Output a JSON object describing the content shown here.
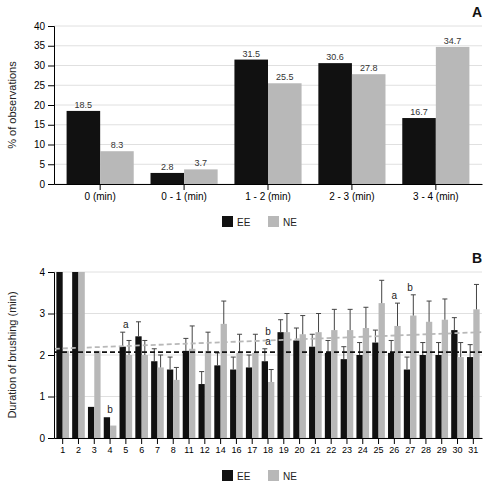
{
  "chart_data": [
    {
      "type": "bar",
      "title": "A",
      "categories": [
        "0 (min)",
        "0 - 1 (min)",
        "1 - 2 (min)",
        "2 - 3 (min)",
        "3 - 4 (min)"
      ],
      "series": [
        {
          "name": "EE",
          "color": "#111111",
          "values": [
            18.5,
            2.8,
            31.5,
            30.6,
            16.7
          ]
        },
        {
          "name": "NE",
          "color": "#b8b8b8",
          "values": [
            8.3,
            3.7,
            25.5,
            27.8,
            34.7
          ]
        }
      ],
      "ylabel": "% of observations",
      "ylim": [
        0,
        40
      ],
      "yticks": [
        0,
        5,
        10,
        15,
        20,
        25,
        30,
        35,
        40
      ],
      "grid": true,
      "legend": "bottom",
      "data_labels": true
    },
    {
      "type": "bar",
      "title": "B",
      "categories": [
        "1",
        "2",
        "3",
        "4",
        "5",
        "6",
        "7",
        "8",
        "11",
        "12",
        "14",
        "16",
        "17",
        "18",
        "19",
        "20",
        "21",
        "22",
        "23",
        "24",
        "25",
        "26",
        "27",
        "28",
        "29",
        "30",
        "31"
      ],
      "series": [
        {
          "name": "EE",
          "color": "#111111",
          "values": [
            4.0,
            4.0,
            0.75,
            0.5,
            2.2,
            2.45,
            1.85,
            1.65,
            2.1,
            1.3,
            1.75,
            1.65,
            1.7,
            1.85,
            2.55,
            2.35,
            2.2,
            2.05,
            1.9,
            2.0,
            2.3,
            2.05,
            1.65,
            2.0,
            2.0,
            2.6,
            1.95
          ],
          "errors": [
            0.0,
            0.0,
            0.0,
            0.0,
            0.35,
            0.35,
            0.3,
            0.3,
            0.3,
            0.3,
            0.3,
            0.3,
            0.3,
            0.3,
            0.3,
            0.3,
            0.3,
            0.3,
            0.3,
            0.3,
            0.3,
            0.3,
            0.3,
            0.3,
            0.3,
            0.3,
            0.3
          ]
        },
        {
          "name": "NE",
          "color": "#b8b8b8",
          "values": [
            2.1,
            4.0,
            2.1,
            0.3,
            2.0,
            2.0,
            1.7,
            1.4,
            2.15,
            2.1,
            2.75,
            2.05,
            2.05,
            1.35,
            2.55,
            2.5,
            2.55,
            2.6,
            2.6,
            2.65,
            3.25,
            2.7,
            2.95,
            2.8,
            2.85,
            1.95,
            3.1
          ],
          "errors": [
            0.0,
            0.0,
            0.0,
            0.0,
            0.35,
            0.35,
            0.3,
            0.3,
            0.55,
            0.45,
            0.55,
            0.45,
            0.45,
            0.3,
            0.45,
            0.45,
            0.45,
            0.5,
            0.5,
            0.5,
            0.55,
            0.55,
            0.5,
            0.5,
            0.5,
            0.35,
            0.6
          ]
        }
      ],
      "ylabel": "Duration of brushing (min)",
      "ylim": [
        0,
        4
      ],
      "yticks": [
        0,
        1,
        2,
        3,
        4
      ],
      "grid": true,
      "legend": "bottom",
      "trend_lines": [
        {
          "color": "#111111",
          "line_style": "dashed",
          "values": [
            2.07
          ]
        },
        {
          "color": "#b8b8b8",
          "line_style": "dashed",
          "values": [
            2.15,
            2.55
          ]
        }
      ],
      "annotations": [
        {
          "text": "a",
          "category": "5"
        },
        {
          "text": "a",
          "category": "18"
        },
        {
          "text": "a",
          "category": "26"
        },
        {
          "text": "b",
          "category": "4"
        },
        {
          "text": "b",
          "category": "18"
        },
        {
          "text": "b",
          "category": "27"
        }
      ]
    }
  ]
}
